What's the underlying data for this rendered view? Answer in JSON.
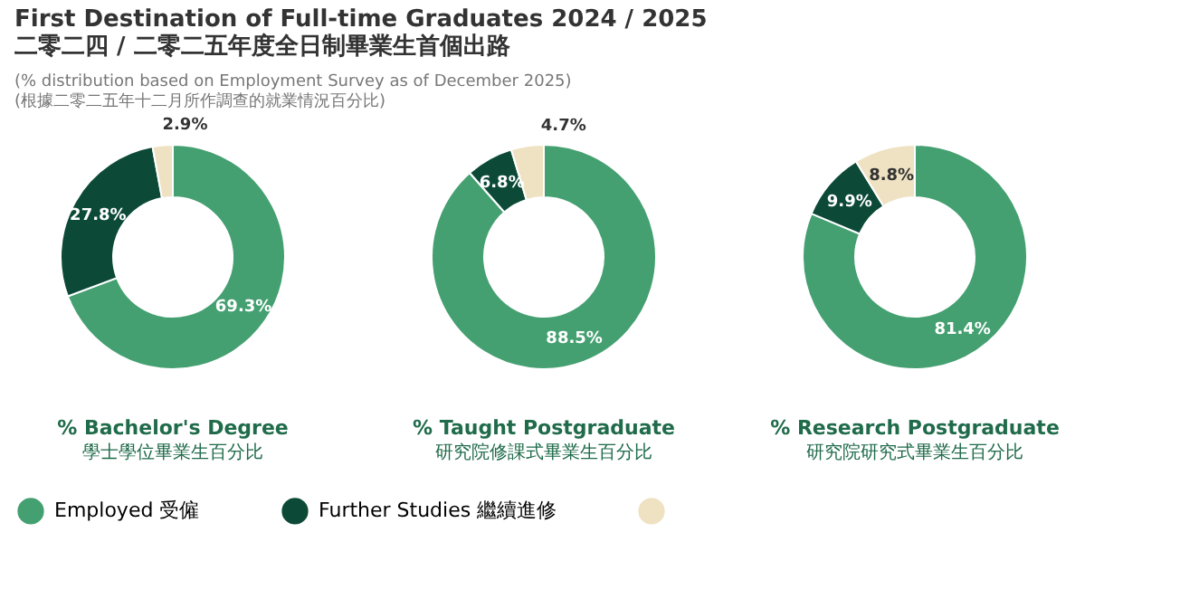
{
  "chart_data": [
    {
      "type": "donut",
      "title": "First Destination of Full-time Graduates 2024 / 2025\n二零二四 / 二零二五年度全日制畢業生首個出路",
      "subtitle": "(% distribution based on Employment Survey as of December 2025)\n(根據二零二五年十二月所作調查的就業情況百分比)",
      "xlabel": "% Bachelor's Degree\n學士學位畢業生百分比",
      "categories": [
        "Employed 受僱",
        "Further Studies 繼續進修",
        null
      ],
      "values": [
        69.3,
        27.8,
        2.9
      ],
      "value_labels": [
        "69.3%",
        "27.8%",
        "2.9%"
      ],
      "colors": [
        "#45a071",
        "#0c4a37",
        "#efe2c2"
      ],
      "legend": "bottom"
    },
    {
      "type": "donut",
      "xlabel": "% Taught Postgraduate\n研究院修課式畢業生百分比",
      "values": [
        88.5,
        6.8,
        4.7
      ],
      "value_labels": [
        "88.5%",
        "6.8%",
        "4.7%"
      ],
      "colors": [
        "#45a071",
        "#0c4a37",
        "#efe2c2"
      ]
    },
    {
      "type": "donut",
      "xlabel": "% Research Postgraduate\n研究院研究式畢業生百分比",
      "values": [
        81.4,
        9.9,
        8.8
      ],
      "value_labels": [
        "81.4%",
        "9.9%",
        "8.8%"
      ],
      "colors": [
        "#45a071",
        "#0c4a37",
        "#efe2c2"
      ]
    }
  ]
}
